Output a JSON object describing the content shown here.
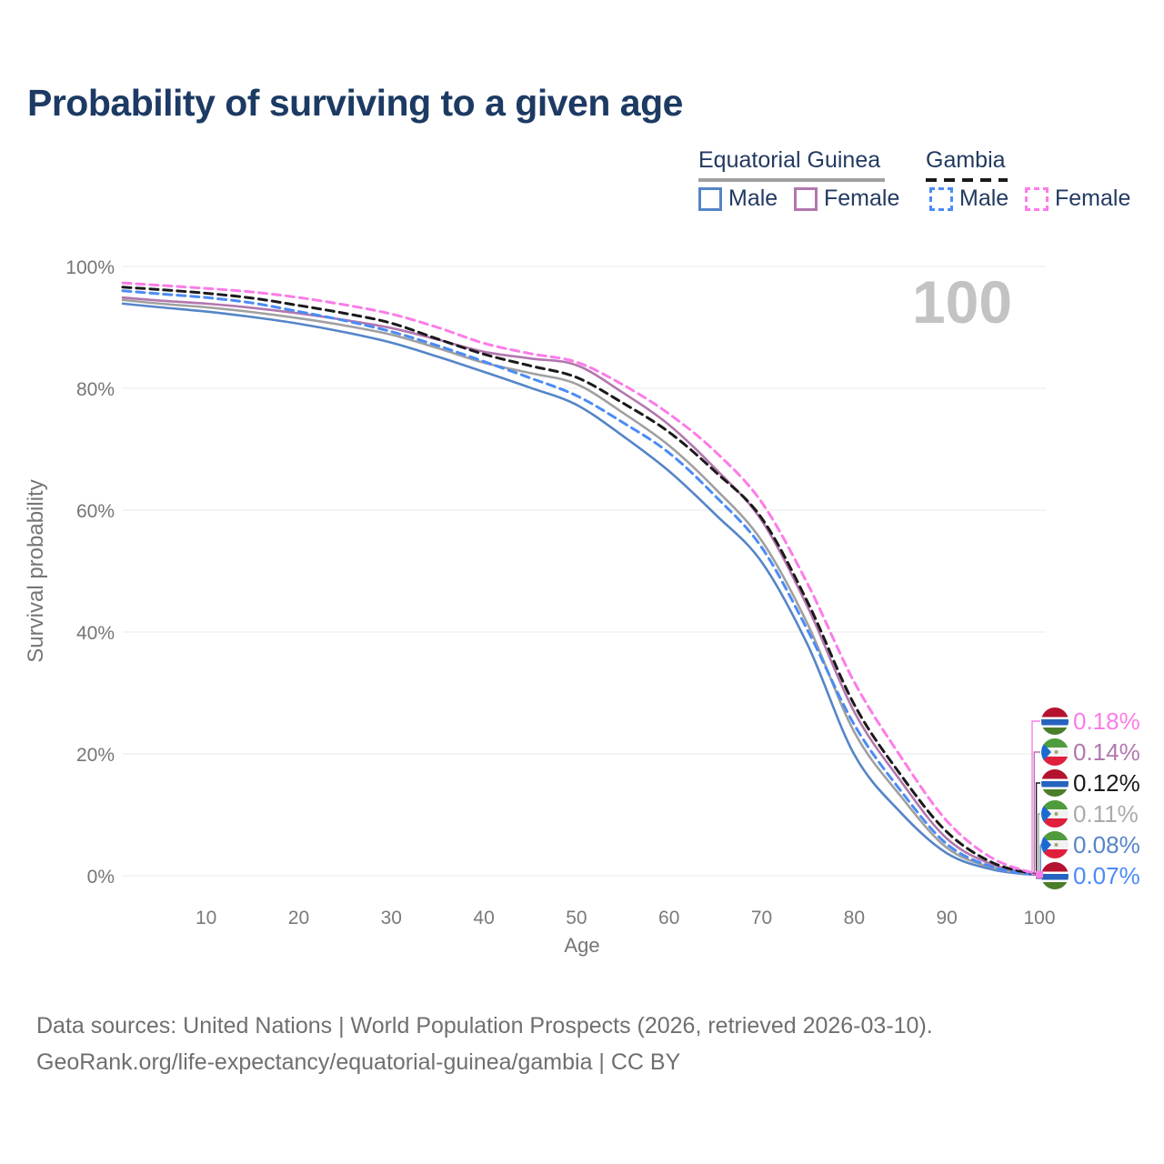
{
  "title": "Probability of surviving to a given age",
  "watermark_age": "100",
  "legend": {
    "groups": [
      {
        "label": "Equatorial Guinea",
        "style": "solid"
      },
      {
        "label": "Gambia",
        "style": "dashed"
      }
    ],
    "items": [
      {
        "label": "Male",
        "color": "#5585c8",
        "style": "solid"
      },
      {
        "label": "Female",
        "color": "#b277ae",
        "style": "solid"
      },
      {
        "label": "Male",
        "color": "#4b8bf5",
        "style": "dashed"
      },
      {
        "label": "Female",
        "color": "#fb7ce8",
        "style": "dashed"
      }
    ]
  },
  "chart_data": {
    "type": "line",
    "title": "Probability of surviving to a given age",
    "xlabel": "Age",
    "ylabel": "Survival probability",
    "xlim": [
      1,
      100.7
    ],
    "ylim": [
      0,
      100
    ],
    "grid": "horizontal",
    "x_ticks": [
      10,
      20,
      30,
      40,
      50,
      60,
      70,
      80,
      90,
      100
    ],
    "y_ticks": [
      {
        "value": 0,
        "label": "0%"
      },
      {
        "value": 20,
        "label": "20%"
      },
      {
        "value": 40,
        "label": "40%"
      },
      {
        "value": 60,
        "label": "60%"
      },
      {
        "value": 80,
        "label": "80%"
      },
      {
        "value": 100,
        "label": "100%"
      }
    ],
    "x": [
      1,
      5,
      10,
      15,
      20,
      25,
      30,
      35,
      40,
      45,
      50,
      55,
      60,
      65,
      70,
      75,
      80,
      85,
      90,
      95,
      100
    ],
    "series": [
      {
        "name": "Equatorial Guinea Male",
        "country": "Equatorial Guinea",
        "sex": "Male",
        "color": "#5585c8",
        "label_color": "#5585c8",
        "dash": false,
        "flag": "gq",
        "end_label": "0.08%",
        "values": [
          93.9,
          93.3,
          92.6,
          91.7,
          90.6,
          89.2,
          87.5,
          85.2,
          82.7,
          80.1,
          77.3,
          72.2,
          66.4,
          59.3,
          51.5,
          37.8,
          19.9,
          10.4,
          3.7,
          1.0,
          0.08
        ]
      },
      {
        "name": "Equatorial Guinea Total",
        "country": "Equatorial Guinea",
        "sex": "Both",
        "color": "#a0a0a0",
        "label_color": "#ababab",
        "dash": false,
        "flag": "gq",
        "end_label": "0.11%",
        "values": [
          94.5,
          93.9,
          93.3,
          92.5,
          91.5,
          90.3,
          88.8,
          86.6,
          84.2,
          82.5,
          80.7,
          76.0,
          70.6,
          63.5,
          55.0,
          41.2,
          23.6,
          13.1,
          4.6,
          1.3,
          0.11
        ]
      },
      {
        "name": "Equatorial Guinea Female",
        "country": "Equatorial Guinea",
        "sex": "Female",
        "color": "#b277ae",
        "label_color": "#b277ae",
        "dash": false,
        "flag": "gq",
        "end_label": "0.14%",
        "values": [
          94.9,
          94.4,
          93.9,
          93.2,
          92.3,
          91.2,
          89.9,
          88.0,
          86.0,
          84.9,
          83.8,
          79.3,
          74.0,
          66.8,
          58.3,
          44.0,
          26.9,
          15.6,
          6.1,
          1.8,
          0.14
        ]
      },
      {
        "name": "Gambia Male",
        "country": "Gambia",
        "sex": "Male",
        "color": "#4b8bf5",
        "label_color": "#4b8bf5",
        "dash": true,
        "flag": "gm",
        "end_label": "0.07%",
        "values": [
          96.0,
          95.5,
          94.9,
          94.0,
          92.6,
          91.1,
          89.3,
          87.0,
          84.4,
          81.7,
          78.8,
          74.4,
          69.4,
          62.3,
          53.9,
          40.2,
          24.8,
          14.0,
          5.2,
          1.4,
          0.07
        ]
      },
      {
        "name": "Gambia Total",
        "country": "Gambia",
        "sex": "Both",
        "color": "#1a1a1a",
        "label_color": "#1a1a1a",
        "dash": true,
        "flag": "gm",
        "end_label": "0.12%",
        "values": [
          96.6,
          96.2,
          95.6,
          94.8,
          93.6,
          92.3,
          90.7,
          88.1,
          85.6,
          83.7,
          81.8,
          77.6,
          72.8,
          66.3,
          58.7,
          44.8,
          28.1,
          16.6,
          7.2,
          2.1,
          0.12
        ]
      },
      {
        "name": "Gambia Female",
        "country": "Gambia",
        "sex": "Female",
        "color": "#fb7ce8",
        "label_color": "#fb7ce8",
        "dash": true,
        "flag": "gm",
        "end_label": "0.18%",
        "values": [
          97.3,
          96.9,
          96.4,
          95.8,
          94.9,
          93.7,
          92.2,
          90.0,
          87.4,
          85.7,
          84.3,
          80.6,
          75.8,
          69.6,
          61.3,
          47.8,
          31.8,
          19.6,
          9.0,
          2.8,
          0.18
        ]
      }
    ]
  },
  "footer": {
    "line1": "Data sources: United Nations | World Population Prospects (2026, retrieved 2026-03-10).",
    "line2": "GeoRank.org/life-expectancy/equatorial-guinea/gambia | CC BY"
  }
}
